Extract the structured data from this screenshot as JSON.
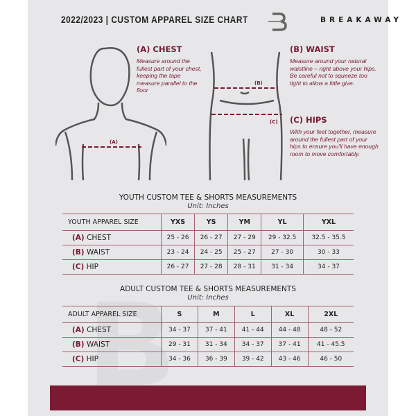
{
  "header": {
    "title": "2022/2023  |  CUSTOM APPAREL SIZE CHART",
    "brand": "BREAKAWAY",
    "logo_letter": "B"
  },
  "guide": {
    "chest": {
      "heading": "(A) CHEST",
      "text": "Measure around the fullest part of your chest, keeping the tape measure parallel to the floor",
      "marker": "(A)"
    },
    "waist": {
      "heading": "(B) WAIST",
      "text": "Measure around your natural waistline – right above your hips. Be careful not to squeeze too tight to allow a little give.",
      "marker": "(B)"
    },
    "hips": {
      "heading": "(C) HIPS",
      "text": "With your feet together, measure around the fullest part of your hips to ensure you'll have enough room to move comfortably.",
      "marker": "(C)"
    }
  },
  "youth": {
    "title": "YOUTH CUSTOM TEE & SHORTS MEASUREMENTS",
    "unit": "Unit: Inches",
    "header": [
      "YOUTH APPAREL SIZE",
      "YXS",
      "YS",
      "YM",
      "YL",
      "YXL"
    ],
    "rows": [
      {
        "code": "(A)",
        "name": "CHEST",
        "values": [
          "25 - 26",
          "26 - 27",
          "27 - 29",
          "29 - 32.5",
          "32.5 - 35.5"
        ]
      },
      {
        "code": "(B)",
        "name": "WAIST",
        "values": [
          "23 - 24",
          "24 - 25",
          "25 - 27",
          "27 - 30",
          "30 - 33"
        ]
      },
      {
        "code": "(C)",
        "name": "HIP",
        "values": [
          "26 - 27",
          "27 - 28",
          "28 - 31",
          "31 - 34",
          "34 - 37"
        ]
      }
    ]
  },
  "adult": {
    "title": "ADULT CUSTOM TEE & SHORTS MEASUREMENTS",
    "unit": "Unit: Inches",
    "header": [
      "ADULT APPAREL SIZE",
      "S",
      "M",
      "L",
      "XL",
      "2XL"
    ],
    "rows": [
      {
        "code": "(A)",
        "name": "CHEST",
        "values": [
          "34 - 37",
          "37 - 41",
          "41 - 44",
          "44 - 48",
          "48 - 52"
        ]
      },
      {
        "code": "(B)",
        "name": "WAIST",
        "values": [
          "29 - 31",
          "31 - 34",
          "34 - 37",
          "37 - 41",
          "41 - 45.5"
        ]
      },
      {
        "code": "(C)",
        "name": "HIP",
        "values": [
          "34 - 36",
          "36 - 39",
          "39 - 42",
          "43 - 46",
          "46 - 50"
        ]
      }
    ]
  },
  "colors": {
    "accent": "#7a1a33",
    "background": "#e7e7e9"
  }
}
